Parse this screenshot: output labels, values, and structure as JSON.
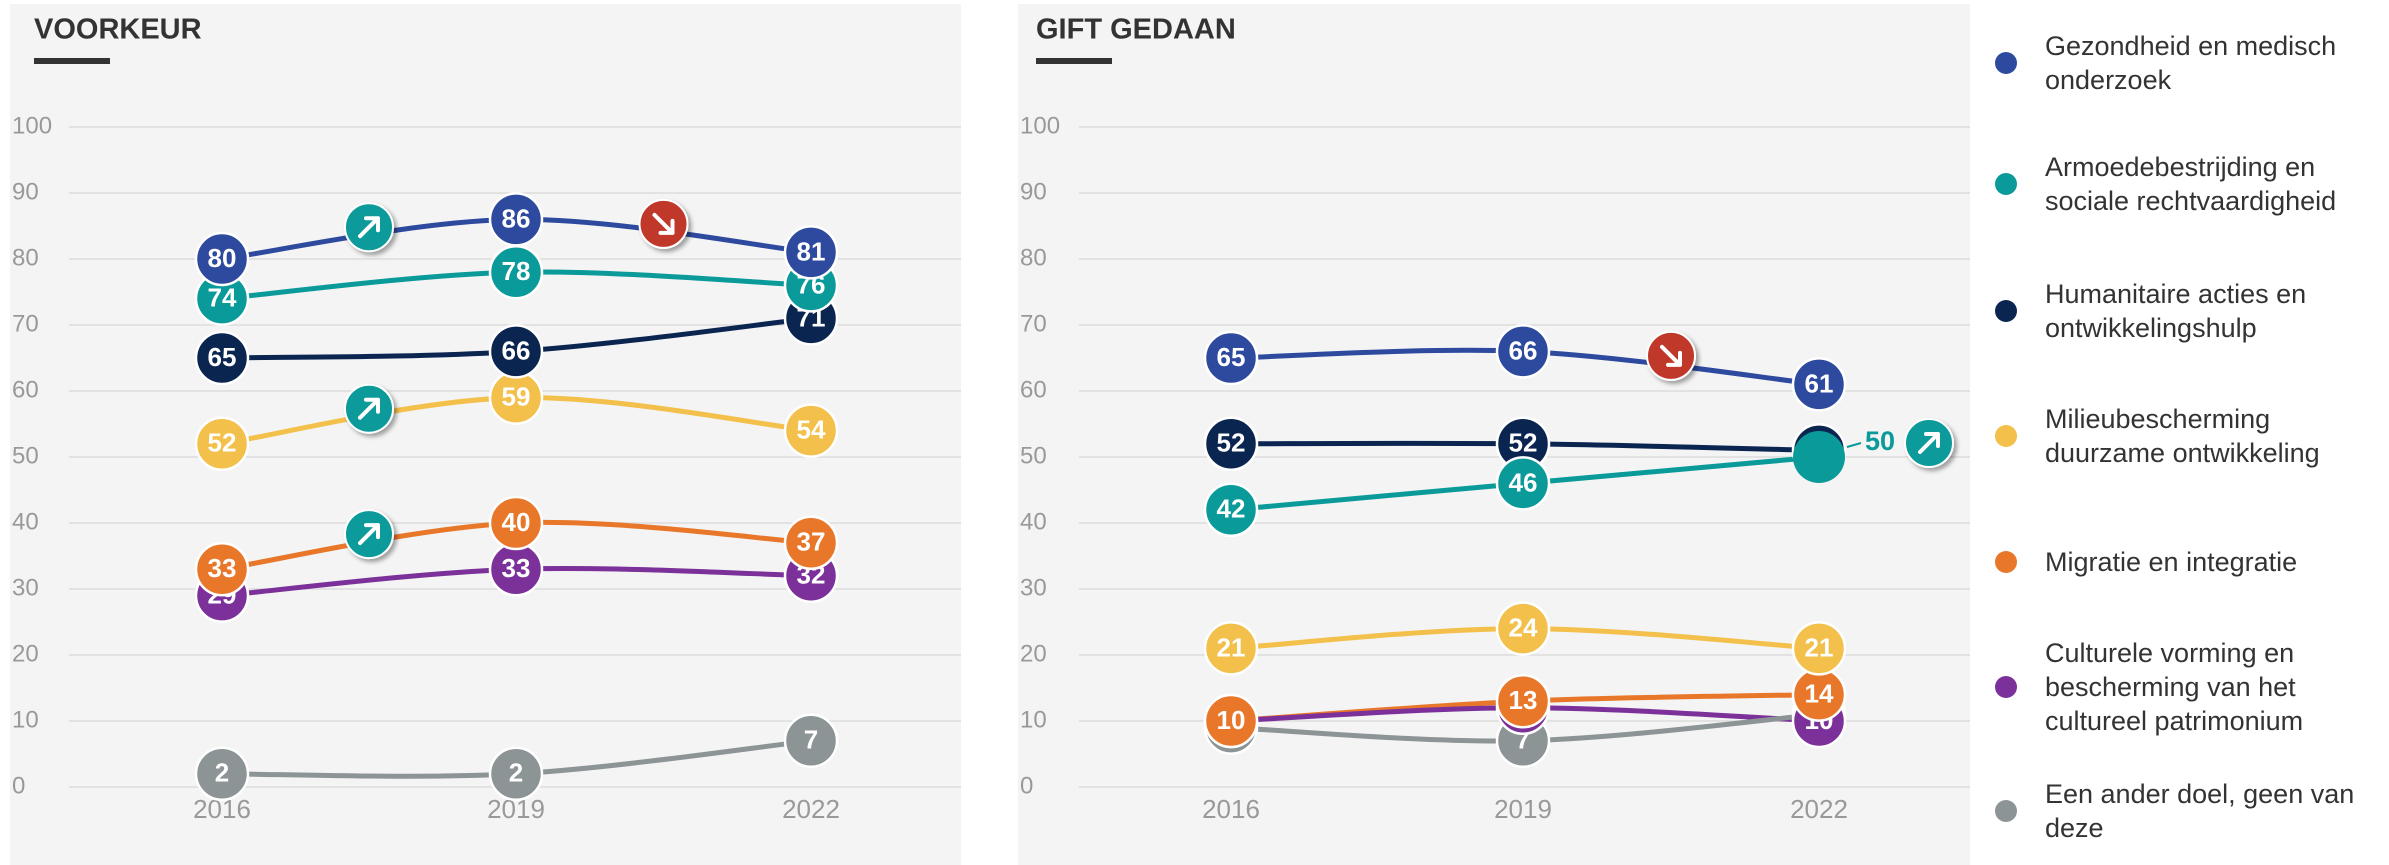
{
  "chart_data": [
    {
      "type": "line",
      "title": "VOORKEUR",
      "categories": [
        "2016",
        "2019",
        "2022"
      ],
      "ylim": [
        0,
        100
      ],
      "yticks": [
        0,
        10,
        20,
        30,
        40,
        50,
        60,
        70,
        80,
        90,
        100
      ],
      "grid": true,
      "series": [
        {
          "name": "Gezondheid en medisch onderzoek",
          "color": "#2e4a9e",
          "values": [
            80,
            86,
            81
          ]
        },
        {
          "name": "Armoedebestrijding en sociale rechtvaardigheid",
          "color": "#0b9a9a",
          "values": [
            74,
            78,
            76
          ]
        },
        {
          "name": "Humanitaire acties en ontwikkelingshulp",
          "color": "#0a2550",
          "values": [
            65,
            66,
            71
          ]
        },
        {
          "name": "Milieubescherming duurzame ontwikkeling",
          "color": "#f2c04b",
          "values": [
            52,
            59,
            54
          ]
        },
        {
          "name": "Migratie en integratie",
          "color": "#e8772a",
          "values": [
            33,
            40,
            37
          ]
        },
        {
          "name": "Culturele vorming en bescherming van het cultureel patrimonium",
          "color": "#7b3199",
          "values": [
            29,
            33,
            32
          ]
        },
        {
          "name": "Een ander doel, geen van deze",
          "color": "#8c9496",
          "values": [
            2,
            2,
            7
          ]
        }
      ]
    },
    {
      "type": "line",
      "title": "GIFT GEDAAN",
      "categories": [
        "2016",
        "2019",
        "2022"
      ],
      "ylim": [
        0,
        100
      ],
      "yticks": [
        0,
        10,
        20,
        30,
        40,
        50,
        60,
        70,
        80,
        90,
        100
      ],
      "grid": true,
      "series": [
        {
          "name": "Gezondheid en medisch onderzoek",
          "color": "#2e4a9e",
          "values": [
            65,
            66,
            61
          ]
        },
        {
          "name": "Armoedebestrijding en sociale rechtvaardigheid",
          "color": "#0b9a9a",
          "values": [
            42,
            46,
            50
          ]
        },
        {
          "name": "Humanitaire acties en ontwikkelingshulp",
          "color": "#0a2550",
          "values": [
            52,
            52,
            51
          ]
        },
        {
          "name": "Milieubescherming duurzame ontwikkeling",
          "color": "#f2c04b",
          "values": [
            21,
            24,
            21
          ]
        },
        {
          "name": "Migratie en integratie",
          "color": "#e8772a",
          "values": [
            10,
            13,
            14
          ]
        },
        {
          "name": "Culturele vorming en bescherming van het cultureel patrimonium",
          "color": "#7b3199",
          "values": [
            10,
            12,
            10
          ]
        },
        {
          "name": "Een ander doel, geen van deze",
          "color": "#8c9496",
          "values": [
            9,
            7,
            11
          ]
        }
      ]
    }
  ]
}
